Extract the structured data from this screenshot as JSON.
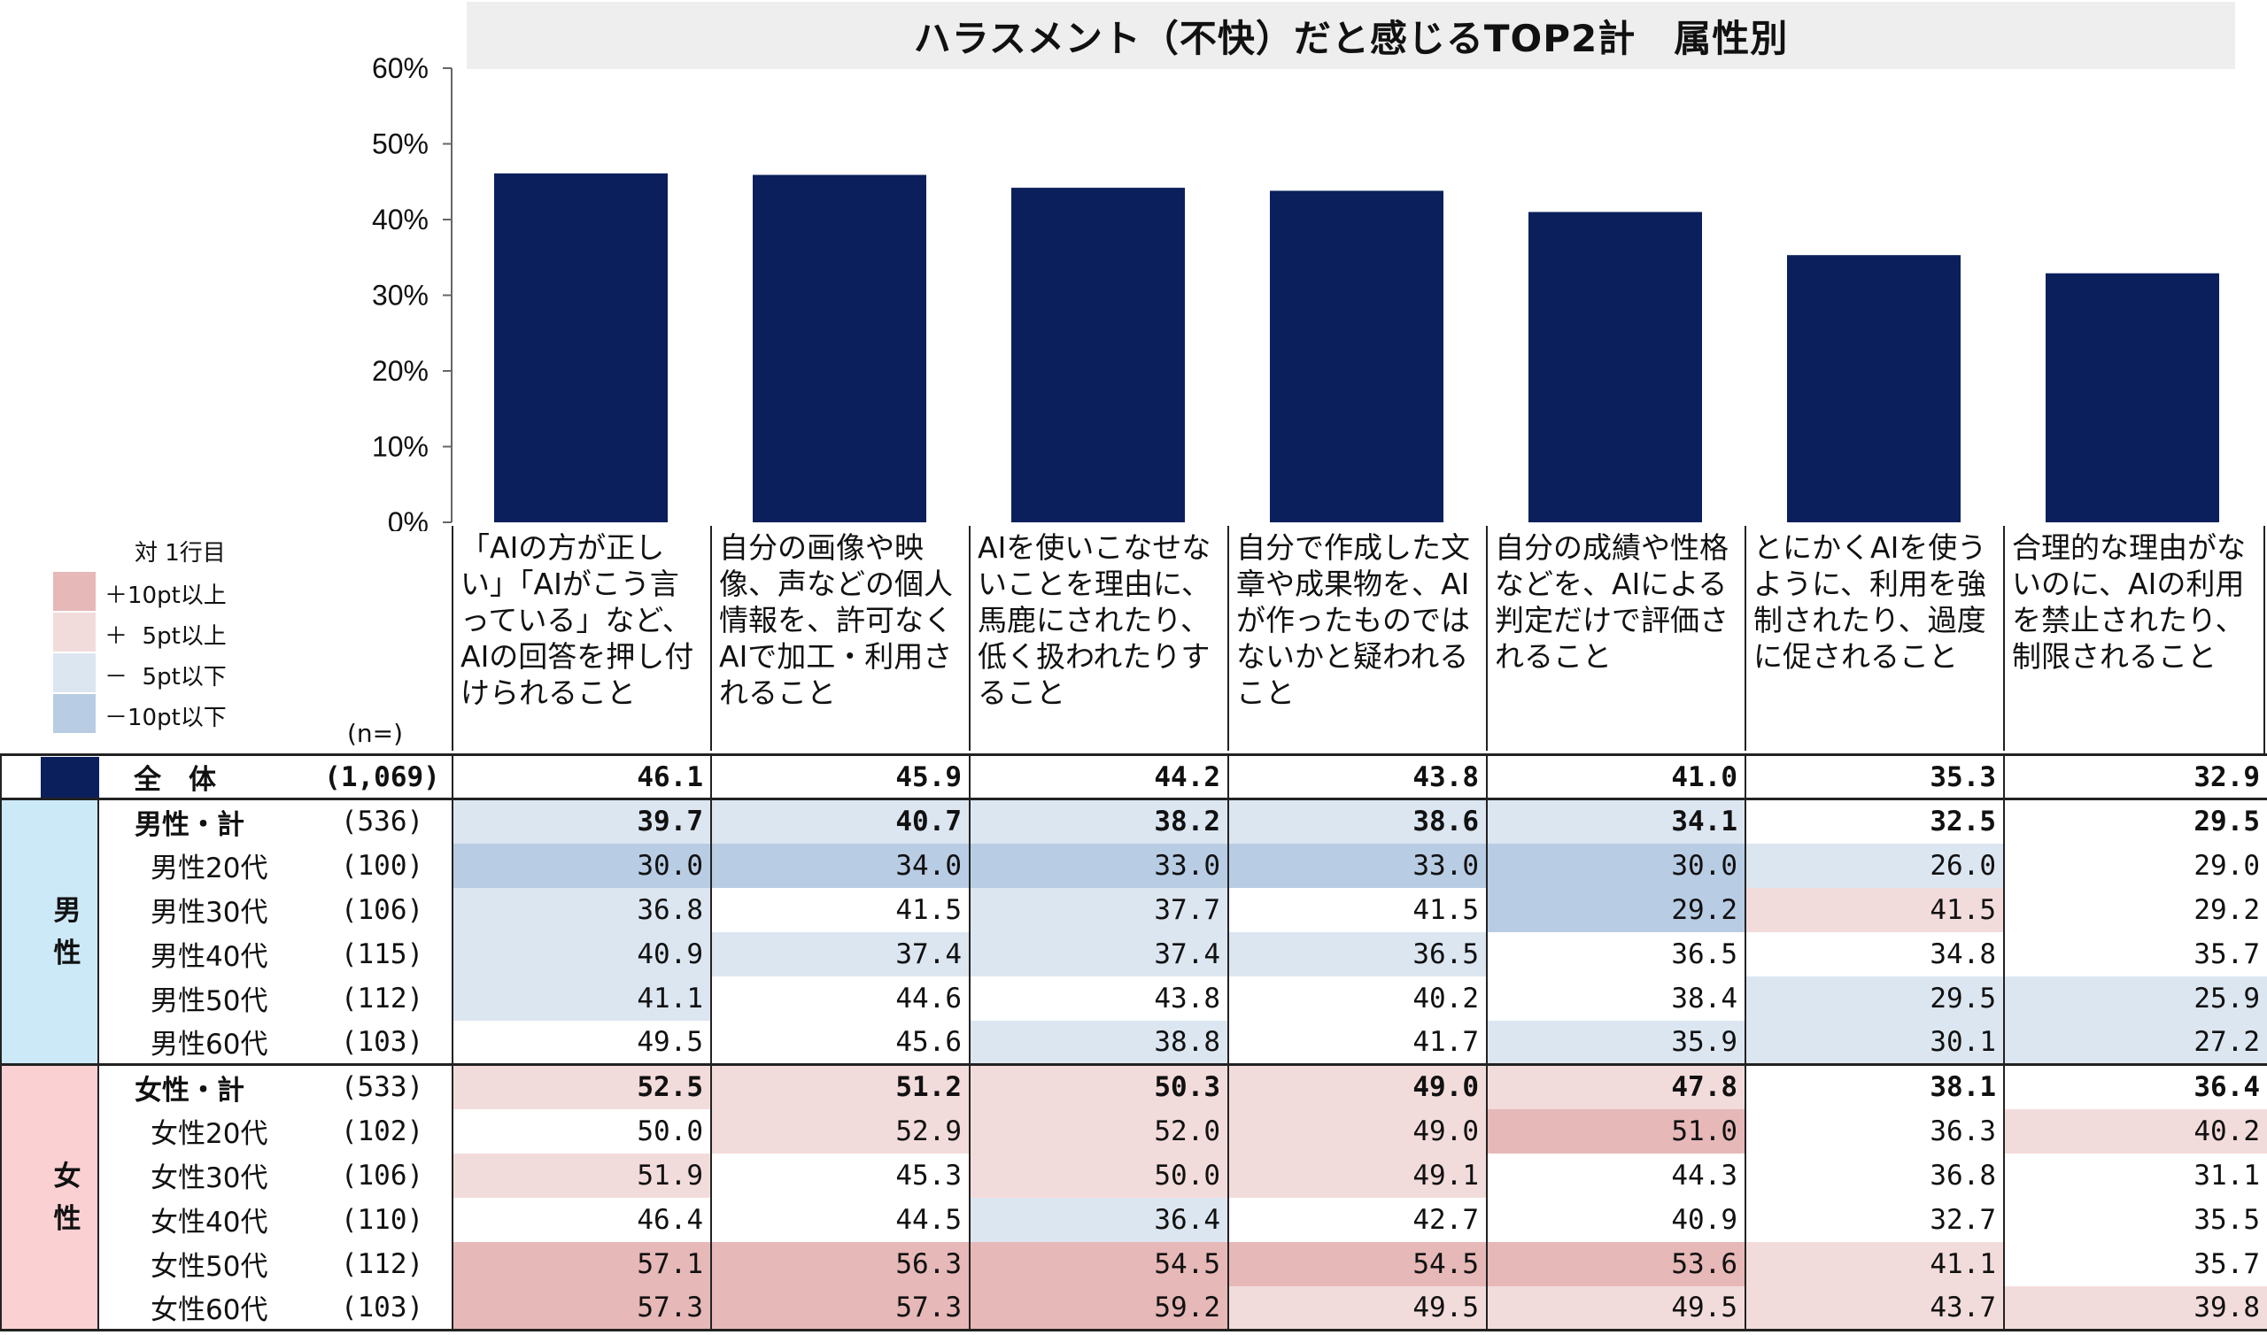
{
  "chart_data": {
    "type": "bar",
    "title": "ハラスメント（不快）だと感じるTOP2計　属性別",
    "ylim": [
      0,
      60
    ],
    "ytick_labels": [
      "0%",
      "10%",
      "20%",
      "30%",
      "40%",
      "50%",
      "60%"
    ],
    "yticks": [
      0,
      10,
      20,
      30,
      40,
      50,
      60
    ],
    "grid": false,
    "categories": [
      "「AIの方が正しい」「AIがこう言っている」など、AIの回答を押し付けられること",
      "自分の画像や映像、声などの個人情報を、許可なくAIで加工・利用されること",
      "AIを使いこなせないことを理由に、馬鹿にされたり、低く扱われたりすること",
      "自分で作成した文章や成果物を、AIが作ったものではないかと疑われること",
      "自分の成績や性格などを、AIによる判定だけで評価されること",
      "とにかくAIを使うように、利用を強制されたり、過度に促されること",
      "合理的な理由がないのに、AIの利用を禁止されたり、制限されること"
    ],
    "values": [
      46.1,
      45.9,
      44.2,
      43.8,
      41.0,
      35.3,
      32.9
    ],
    "bar_color": "#0a1f5c"
  },
  "legend": {
    "title": "対 1行目",
    "items": [
      {
        "label": "＋10pt以上",
        "color": "#e6b8b7"
      },
      {
        "label": "＋  5pt以上",
        "color": "#f2dcdb"
      },
      {
        "label": "－  5pt以下",
        "color": "#dce6f1"
      },
      {
        "label": "－10pt以下",
        "color": "#b8cce4"
      }
    ]
  },
  "table": {
    "n_header": "(n=)",
    "total": {
      "label": "全　体",
      "n": "(1,069)",
      "values": [
        "46.1",
        "45.9",
        "44.2",
        "43.8",
        "41.0",
        "35.3",
        "32.9"
      ]
    },
    "groups": [
      {
        "name": "男性",
        "color": "#cce9f8",
        "rows": [
          {
            "label": "男性・計",
            "n": "(536)",
            "bold": true,
            "values": [
              "39.7",
              "40.7",
              "38.2",
              "38.6",
              "34.1",
              "32.5",
              "29.5"
            ]
          },
          {
            "label": "男性20代",
            "n": "(100)",
            "bold": false,
            "values": [
              "30.0",
              "34.0",
              "33.0",
              "33.0",
              "30.0",
              "26.0",
              "29.0"
            ]
          },
          {
            "label": "男性30代",
            "n": "(106)",
            "bold": false,
            "values": [
              "36.8",
              "41.5",
              "37.7",
              "41.5",
              "29.2",
              "41.5",
              "29.2"
            ]
          },
          {
            "label": "男性40代",
            "n": "(115)",
            "bold": false,
            "values": [
              "40.9",
              "37.4",
              "37.4",
              "36.5",
              "36.5",
              "34.8",
              "35.7"
            ]
          },
          {
            "label": "男性50代",
            "n": "(112)",
            "bold": false,
            "values": [
              "41.1",
              "44.6",
              "43.8",
              "40.2",
              "38.4",
              "29.5",
              "25.9"
            ]
          },
          {
            "label": "男性60代",
            "n": "(103)",
            "bold": false,
            "values": [
              "49.5",
              "45.6",
              "38.8",
              "41.7",
              "35.9",
              "30.1",
              "27.2"
            ]
          }
        ]
      },
      {
        "name": "女性",
        "color": "#fbd0d3",
        "rows": [
          {
            "label": "女性・計",
            "n": "(533)",
            "bold": true,
            "values": [
              "52.5",
              "51.2",
              "50.3",
              "49.0",
              "47.8",
              "38.1",
              "36.4"
            ]
          },
          {
            "label": "女性20代",
            "n": "(102)",
            "bold": false,
            "values": [
              "50.0",
              "52.9",
              "52.0",
              "49.0",
              "51.0",
              "36.3",
              "40.2"
            ]
          },
          {
            "label": "女性30代",
            "n": "(106)",
            "bold": false,
            "values": [
              "51.9",
              "45.3",
              "50.0",
              "49.1",
              "44.3",
              "36.8",
              "31.1"
            ]
          },
          {
            "label": "女性40代",
            "n": "(110)",
            "bold": false,
            "values": [
              "46.4",
              "44.5",
              "36.4",
              "42.7",
              "40.9",
              "32.7",
              "35.5"
            ]
          },
          {
            "label": "女性50代",
            "n": "(112)",
            "bold": false,
            "values": [
              "57.1",
              "56.3",
              "54.5",
              "54.5",
              "53.6",
              "41.1",
              "35.7"
            ]
          },
          {
            "label": "女性60代",
            "n": "(103)",
            "bold": false,
            "values": [
              "57.3",
              "57.3",
              "59.2",
              "49.5",
              "49.5",
              "43.7",
              "39.8"
            ]
          }
        ]
      }
    ]
  }
}
